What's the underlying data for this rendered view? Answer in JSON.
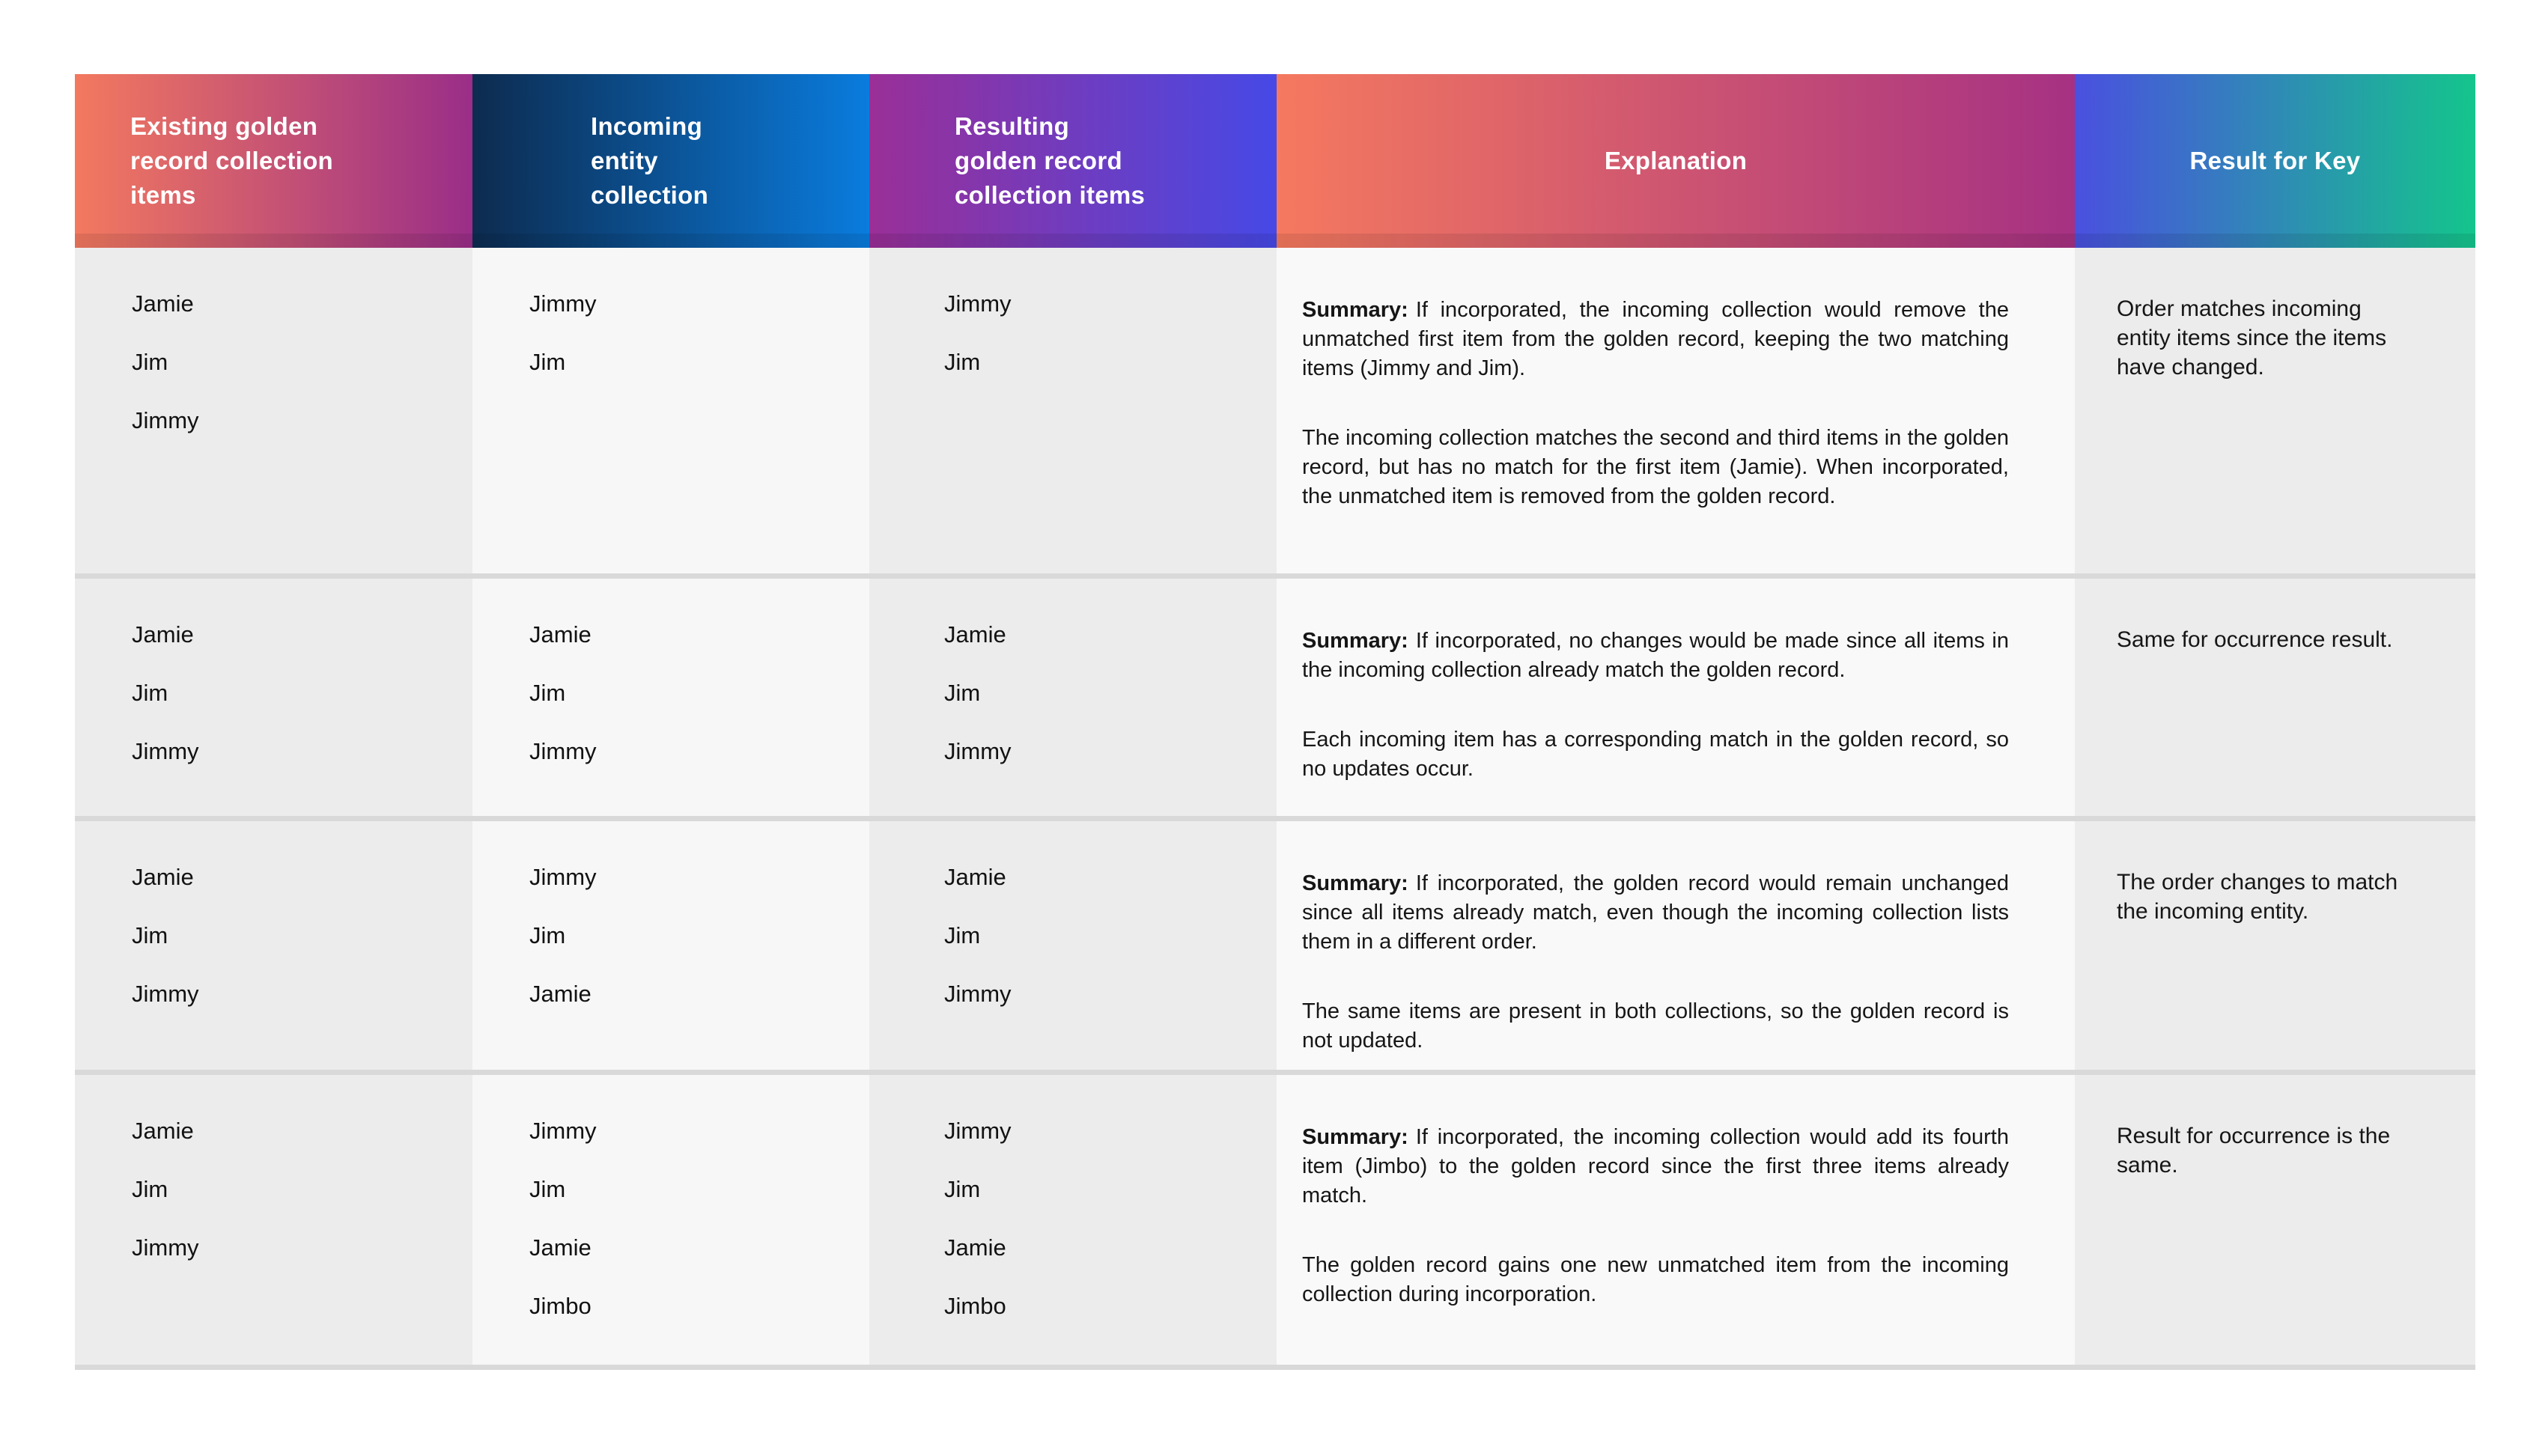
{
  "labels": {
    "summary": "Summary:"
  },
  "colors": {
    "header_text": "#FFFFFF",
    "body_text": "#161616",
    "divider": "#D9D9D9",
    "column_backgrounds": [
      "#ECECEC",
      "#F7F7F7",
      "#ECECEC",
      "#F9F9F9",
      "#ECECEC"
    ]
  },
  "columns": [
    {
      "label": "Existing golden record collection items",
      "lines": [
        "Existing golden",
        "record collection",
        "items"
      ],
      "gradient": [
        "#F3795F",
        "#9A2E88"
      ]
    },
    {
      "label": "Incoming entity collection",
      "lines": [
        "Incoming",
        "entity",
        "collection"
      ],
      "gradient": [
        "#0D2B4F",
        "#0A7CDE"
      ]
    },
    {
      "label": "Resulting golden record collection items",
      "lines": [
        "Resulting",
        "golden record",
        "collection items"
      ],
      "gradient": [
        "#9A2F97",
        "#4649E6"
      ]
    },
    {
      "label": "Explanation",
      "lines": [
        "Explanation"
      ],
      "gradient": [
        "#F5795F",
        "#A63183"
      ]
    },
    {
      "label": "Result for Key",
      "lines": [
        "Result for Key"
      ],
      "gradient": [
        "#4A50DF",
        "#14C58C"
      ]
    }
  ],
  "rows": [
    {
      "existing": [
        "Jamie",
        "Jim",
        "Jimmy"
      ],
      "incoming": [
        "Jimmy",
        "Jim"
      ],
      "resulting": [
        "Jimmy",
        "Jim"
      ],
      "explanation": {
        "summary": "If incorporated, the incoming collection would remove the unmatched first item from the golden record, keeping the two matching items (Jimmy and Jim).",
        "detail": "The incoming collection matches the second and third items in the golden record, but has no match for the first item (Jamie). When incorporated, the unmatched item is removed from the golden record."
      },
      "result_for_key": "Order matches incoming entity items since the items have changed."
    },
    {
      "existing": [
        "Jamie",
        "Jim",
        "Jimmy"
      ],
      "incoming": [
        "Jamie",
        "Jim",
        "Jimmy"
      ],
      "resulting": [
        "Jamie",
        "Jim",
        "Jimmy"
      ],
      "explanation": {
        "summary": "If incorporated, no changes would be made since all items in the incoming collection already match the golden record.",
        "detail": "Each incoming item has a corresponding match in the golden record, so no updates occur."
      },
      "result_for_key": "Same for occurrence result."
    },
    {
      "existing": [
        "Jamie",
        "Jim",
        "Jimmy"
      ],
      "incoming": [
        "Jimmy",
        "Jim",
        "Jamie"
      ],
      "resulting": [
        "Jamie",
        "Jim",
        "Jimmy"
      ],
      "explanation": {
        "summary": "If incorporated, the golden record would remain unchanged since all items already match, even though the incoming collection lists them in a different order.",
        "detail": "The same items are present in both collections, so the golden record is not updated."
      },
      "result_for_key": "The order changes to match the incoming entity."
    },
    {
      "existing": [
        "Jamie",
        "Jim",
        "Jimmy"
      ],
      "incoming": [
        "Jimmy",
        "Jim",
        "Jamie",
        "Jimbo"
      ],
      "resulting": [
        "Jimmy",
        "Jim",
        "Jamie",
        "Jimbo"
      ],
      "explanation": {
        "summary": "If incorporated, the incoming collection would add its fourth item (Jimbo) to the golden record since the first three items already match.",
        "detail": "The golden record gains one new unmatched item from the incoming collection during incorporation."
      },
      "result_for_key": "Result for occurrence is the same."
    }
  ]
}
